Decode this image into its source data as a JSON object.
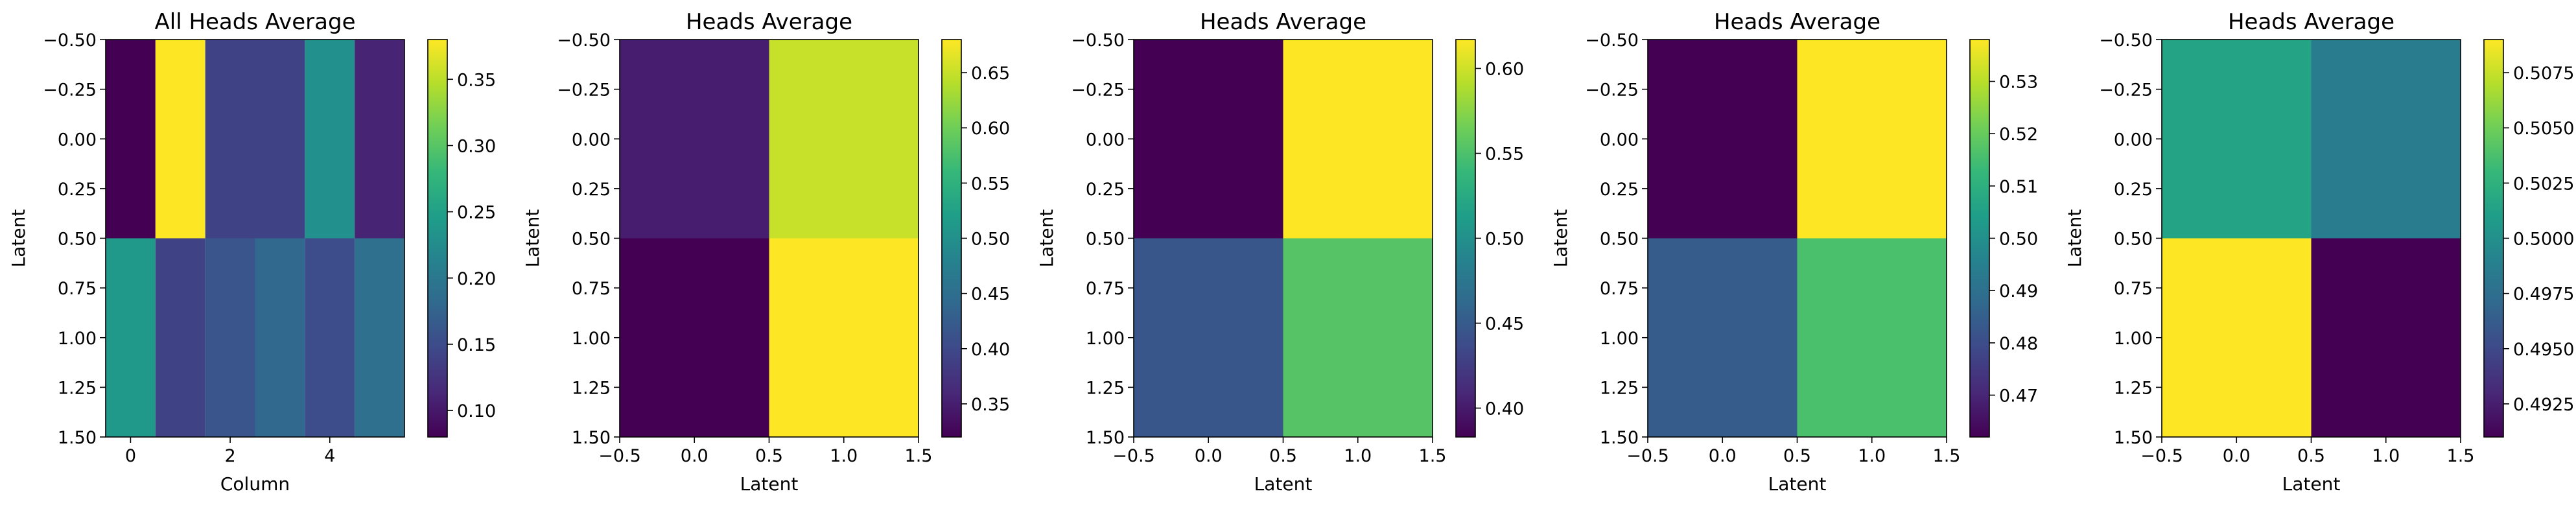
{
  "chart_data": [
    {
      "type": "heatmap",
      "title": "All Heads Average",
      "xlabel": "Column",
      "ylabel": "Latent",
      "grid": false,
      "colormap": "viridis",
      "nrows": 2,
      "ncols": 6,
      "values": [
        [
          0.08,
          0.38,
          0.14,
          0.14,
          0.23,
          0.11
        ],
        [
          0.24,
          0.14,
          0.16,
          0.18,
          0.15,
          0.19
        ]
      ],
      "xlim": [
        -0.5,
        5.5
      ],
      "ylim": [
        1.5,
        -0.5
      ],
      "xticks": [
        0,
        2,
        4
      ],
      "xtick_labels": [
        "0",
        "2",
        "4"
      ],
      "yticks": [
        -0.5,
        -0.25,
        0.0,
        0.25,
        0.5,
        0.75,
        1.0,
        1.25,
        1.5
      ],
      "ytick_labels": [
        "−0.50",
        "−0.25",
        "0.00",
        "0.25",
        "0.50",
        "0.75",
        "1.00",
        "1.25",
        "1.50"
      ],
      "colorbar": {
        "vmin": 0.08,
        "vmax": 0.38,
        "ticks": [
          0.1,
          0.15,
          0.2,
          0.25,
          0.3,
          0.35
        ],
        "tick_labels": [
          "0.10",
          "0.15",
          "0.20",
          "0.25",
          "0.30",
          "0.35"
        ]
      }
    },
    {
      "type": "heatmap",
      "title": "Heads Average",
      "xlabel": "Latent",
      "ylabel": "Latent",
      "grid": false,
      "colormap": "viridis",
      "nrows": 2,
      "ncols": 2,
      "values": [
        [
          0.35,
          0.65
        ],
        [
          0.32,
          0.68
        ]
      ],
      "xlim": [
        -0.5,
        1.5
      ],
      "ylim": [
        1.5,
        -0.5
      ],
      "xticks": [
        -0.5,
        0.0,
        0.5,
        1.0,
        1.5
      ],
      "xtick_labels": [
        "−0.5",
        "0.0",
        "0.5",
        "1.0",
        "1.5"
      ],
      "yticks": [
        -0.5,
        -0.25,
        0.0,
        0.25,
        0.5,
        0.75,
        1.0,
        1.25,
        1.5
      ],
      "ytick_labels": [
        "−0.50",
        "−0.25",
        "0.00",
        "0.25",
        "0.50",
        "0.75",
        "1.00",
        "1.25",
        "1.50"
      ],
      "colorbar": {
        "vmin": 0.32,
        "vmax": 0.68,
        "ticks": [
          0.35,
          0.4,
          0.45,
          0.5,
          0.55,
          0.6,
          0.65
        ],
        "tick_labels": [
          "0.35",
          "0.40",
          "0.45",
          "0.50",
          "0.55",
          "0.60",
          "0.65"
        ]
      }
    },
    {
      "type": "heatmap",
      "title": "Heads Average",
      "xlabel": "Latent",
      "ylabel": "Latent",
      "grid": false,
      "colormap": "viridis",
      "nrows": 2,
      "ncols": 2,
      "values": [
        [
          0.383,
          0.617
        ],
        [
          0.446,
          0.554
        ]
      ],
      "xlim": [
        -0.5,
        1.5
      ],
      "ylim": [
        1.5,
        -0.5
      ],
      "xticks": [
        -0.5,
        0.0,
        0.5,
        1.0,
        1.5
      ],
      "xtick_labels": [
        "−0.5",
        "0.0",
        "0.5",
        "1.0",
        "1.5"
      ],
      "yticks": [
        -0.5,
        -0.25,
        0.0,
        0.25,
        0.5,
        0.75,
        1.0,
        1.25,
        1.5
      ],
      "ytick_labels": [
        "−0.50",
        "−0.25",
        "0.00",
        "0.25",
        "0.50",
        "0.75",
        "1.00",
        "1.25",
        "1.50"
      ],
      "colorbar": {
        "vmin": 0.383,
        "vmax": 0.617,
        "ticks": [
          0.4,
          0.45,
          0.5,
          0.55,
          0.6
        ],
        "tick_labels": [
          "0.40",
          "0.45",
          "0.50",
          "0.55",
          "0.60"
        ]
      }
    },
    {
      "type": "heatmap",
      "title": "Heads Average",
      "xlabel": "Latent",
      "ylabel": "Latent",
      "grid": false,
      "colormap": "viridis",
      "nrows": 2,
      "ncols": 2,
      "values": [
        [
          0.462,
          0.538
        ],
        [
          0.484,
          0.516
        ]
      ],
      "xlim": [
        -0.5,
        1.5
      ],
      "ylim": [
        1.5,
        -0.5
      ],
      "xticks": [
        -0.5,
        0.0,
        0.5,
        1.0,
        1.5
      ],
      "xtick_labels": [
        "−0.5",
        "0.0",
        "0.5",
        "1.0",
        "1.5"
      ],
      "yticks": [
        -0.5,
        -0.25,
        0.0,
        0.25,
        0.5,
        0.75,
        1.0,
        1.25,
        1.5
      ],
      "ytick_labels": [
        "−0.50",
        "−0.25",
        "0.00",
        "0.25",
        "0.50",
        "0.75",
        "1.00",
        "1.25",
        "1.50"
      ],
      "colorbar": {
        "vmin": 0.462,
        "vmax": 0.538,
        "ticks": [
          0.47,
          0.48,
          0.49,
          0.5,
          0.51,
          0.52,
          0.53
        ],
        "tick_labels": [
          "0.47",
          "0.48",
          "0.49",
          "0.50",
          "0.51",
          "0.52",
          "0.53"
        ]
      }
    },
    {
      "type": "heatmap",
      "title": "Heads Average",
      "xlabel": "Latent",
      "ylabel": "Latent",
      "grid": false,
      "colormap": "viridis",
      "nrows": 2,
      "ncols": 2,
      "values": [
        [
          0.5015,
          0.4985
        ],
        [
          0.509,
          0.491
        ]
      ],
      "xlim": [
        -0.5,
        1.5
      ],
      "ylim": [
        1.5,
        -0.5
      ],
      "xticks": [
        -0.5,
        0.0,
        0.5,
        1.0,
        1.5
      ],
      "xtick_labels": [
        "−0.5",
        "0.0",
        "0.5",
        "1.0",
        "1.5"
      ],
      "yticks": [
        -0.5,
        -0.25,
        0.0,
        0.25,
        0.5,
        0.75,
        1.0,
        1.25,
        1.5
      ],
      "ytick_labels": [
        "−0.50",
        "−0.25",
        "0.00",
        "0.25",
        "0.50",
        "0.75",
        "1.00",
        "1.25",
        "1.50"
      ],
      "colorbar": {
        "vmin": 0.491,
        "vmax": 0.509,
        "ticks": [
          0.4925,
          0.495,
          0.4975,
          0.5,
          0.5025,
          0.505,
          0.5075
        ],
        "tick_labels": [
          "0.4925",
          "0.4950",
          "0.4975",
          "0.5000",
          "0.5025",
          "0.5050",
          "0.5075"
        ]
      }
    }
  ]
}
